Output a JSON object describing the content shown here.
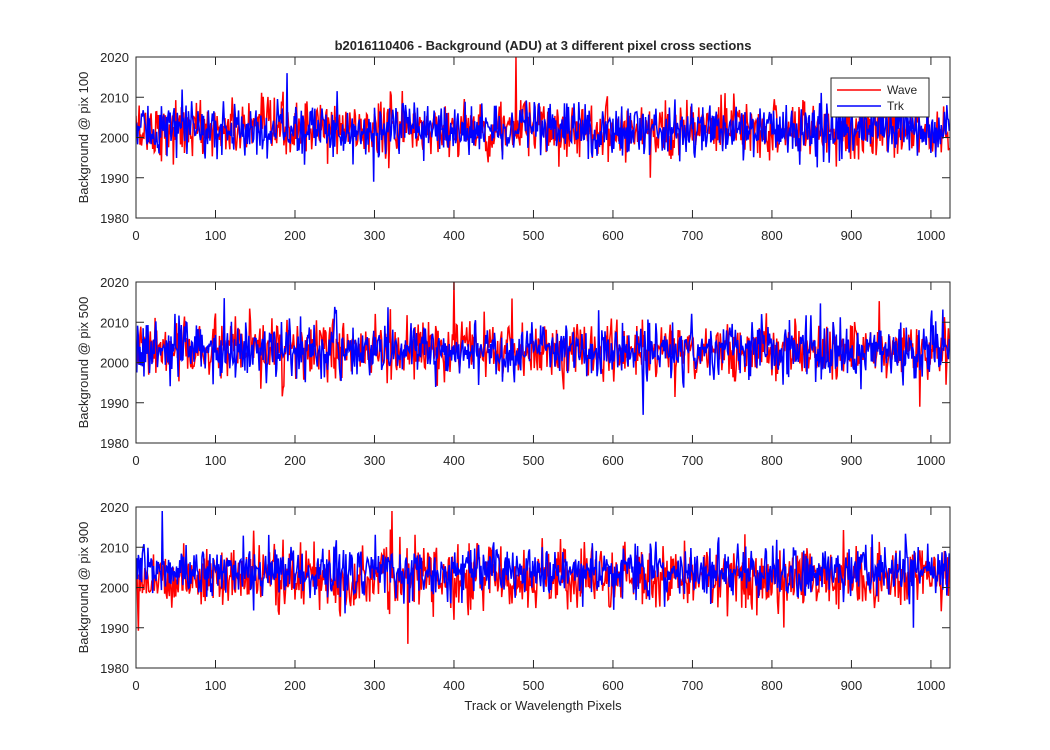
{
  "title": "b2016110406 - Background (ADU) at 3 different pixel cross sections",
  "colors": {
    "Wave": "#ff0000",
    "Trk": "#0000ff",
    "axis": "#262626"
  },
  "chart_data": [
    {
      "type": "line",
      "ylabel": "Background @ pix 100",
      "xlabel": "",
      "xlim": [
        0,
        1024
      ],
      "ylim": [
        1980,
        2020
      ],
      "xticks": [
        0,
        100,
        200,
        300,
        400,
        500,
        600,
        700,
        800,
        900,
        1000
      ],
      "yticks": [
        1980,
        1990,
        2000,
        2010,
        2020
      ],
      "legend": {
        "location": "top-right",
        "entries": [
          "Wave",
          "Trk"
        ]
      },
      "series": [
        {
          "name": "Wave",
          "color": "#ff0000",
          "n_points": 1024,
          "mean": 2002,
          "spread": 3.5,
          "min": 1990,
          "max": 2020
        },
        {
          "name": "Trk",
          "color": "#0000ff",
          "n_points": 1024,
          "mean": 2002,
          "spread": 3.2,
          "min": 1989,
          "max": 2016
        }
      ]
    },
    {
      "type": "line",
      "ylabel": "Background @ pix 500",
      "xlabel": "",
      "xlim": [
        0,
        1024
      ],
      "ylim": [
        1980,
        2020
      ],
      "xticks": [
        0,
        100,
        200,
        300,
        400,
        500,
        600,
        700,
        800,
        900,
        1000
      ],
      "yticks": [
        1980,
        1990,
        2000,
        2010,
        2020
      ],
      "series": [
        {
          "name": "Wave",
          "color": "#ff0000",
          "n_points": 1024,
          "mean": 2003,
          "spread": 3.5,
          "min": 1989,
          "max": 2020
        },
        {
          "name": "Trk",
          "color": "#0000ff",
          "n_points": 1024,
          "mean": 2003,
          "spread": 3.3,
          "min": 1987,
          "max": 2016
        }
      ]
    },
    {
      "type": "line",
      "ylabel": "Background @ pix 900",
      "xlabel": "Track or Wavelength Pixels",
      "xlim": [
        0,
        1024
      ],
      "ylim": [
        1980,
        2020
      ],
      "xticks": [
        0,
        100,
        200,
        300,
        400,
        500,
        600,
        700,
        800,
        900,
        1000
      ],
      "yticks": [
        1980,
        1990,
        2000,
        2010,
        2020
      ],
      "series": [
        {
          "name": "Wave",
          "color": "#ff0000",
          "n_points": 1024,
          "mean": 2002.5,
          "spread": 3.8,
          "min": 1986,
          "max": 2019
        },
        {
          "name": "Trk",
          "color": "#0000ff",
          "n_points": 1024,
          "mean": 2004,
          "spread": 3.2,
          "min": 1990,
          "max": 2019
        }
      ]
    }
  ]
}
